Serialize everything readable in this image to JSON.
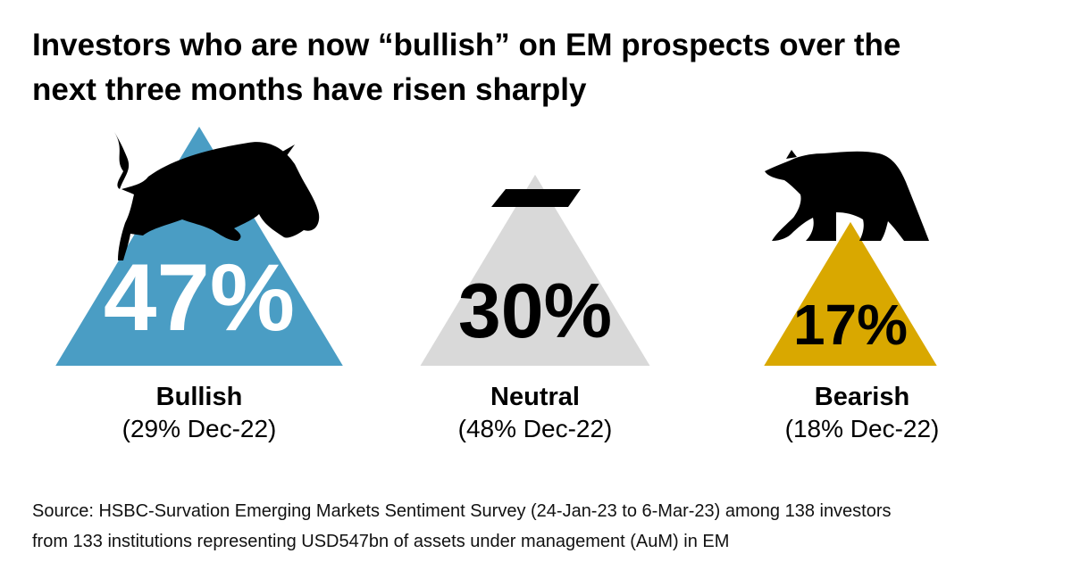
{
  "title_lines": [
    "Investors who are now “bullish” on EM prospects over the",
    "next three months have risen sharply"
  ],
  "chart_data": {
    "type": "bar",
    "title": "Investors who are now “bullish” on EM prospects over the next three months have risen sharply",
    "categories": [
      "Bullish",
      "Neutral",
      "Bearish"
    ],
    "values": [
      47,
      30,
      17
    ],
    "value_labels": [
      "47%",
      "30%",
      "17%"
    ],
    "previous_labels": [
      "(29% Dec-22)",
      "(48% Dec-22)",
      "(18% Dec-22)"
    ],
    "previous_values": [
      29,
      48,
      18
    ],
    "unit": "%",
    "colors": [
      "#4a9dc4",
      "#d9d9d9",
      "#d9a800"
    ],
    "value_text_colors": [
      "#ffffff",
      "#000000",
      "#000000"
    ],
    "icons": [
      "bull-icon",
      "neutral-dash-icon",
      "bear-icon"
    ]
  },
  "source_lines": [
    "Source: HSBC-Survation Emerging Markets Sentiment Survey (24-Jan-23 to 6-Mar-23) among 138 investors",
    "from 133 institutions representing USD547bn of assets under management (AuM) in EM"
  ]
}
